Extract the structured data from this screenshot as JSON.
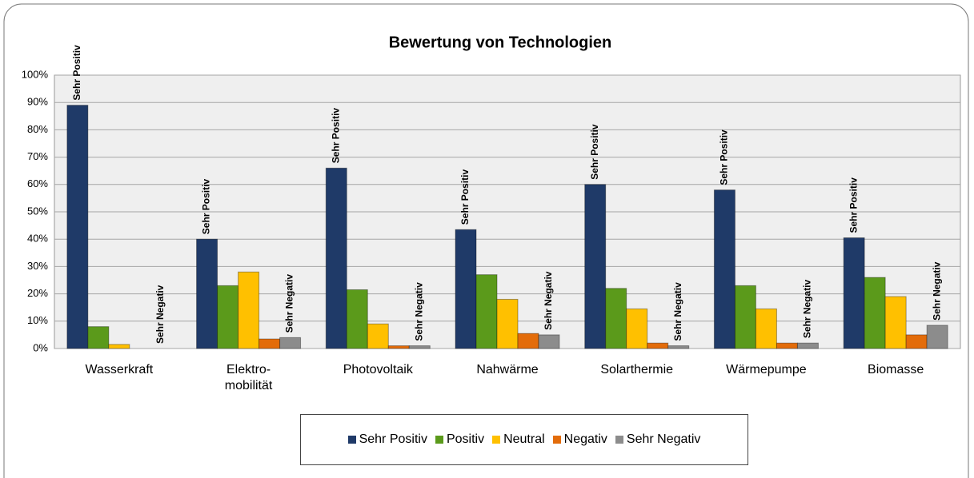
{
  "chart_data": {
    "type": "bar",
    "title": "Bewertung von Technologien",
    "categories": [
      "Wasserkraft",
      "Elektro-\nmobilität",
      "Photovoltaik",
      "Nahwärme",
      "Solarthermie",
      "Wärmepumpe",
      "Biomasse"
    ],
    "series": [
      {
        "name": "Sehr Positiv",
        "color": "#1f3a68",
        "values": [
          89,
          40,
          66,
          43.5,
          60,
          58,
          40.5
        ]
      },
      {
        "name": "Positiv",
        "color": "#5b9a1b",
        "values": [
          8,
          23,
          21.5,
          27,
          22,
          23,
          26
        ]
      },
      {
        "name": "Neutral",
        "color": "#ffc000",
        "values": [
          1.5,
          28,
          9,
          18,
          14.5,
          14.5,
          19
        ]
      },
      {
        "name": "Negativ",
        "color": "#e36c0a",
        "values": [
          0,
          3.5,
          1,
          5.5,
          2,
          2,
          5
        ]
      },
      {
        "name": "Sehr Negativ",
        "color": "#8c8c8c",
        "values": [
          0,
          4,
          1,
          5,
          1,
          2,
          8.5
        ]
      }
    ],
    "ylim": [
      0,
      100
    ],
    "yticks": [
      {
        "value": 0,
        "label": "0%"
      },
      {
        "value": 10,
        "label": "10%"
      },
      {
        "value": 20,
        "label": "20%"
      },
      {
        "value": 30,
        "label": "30%"
      },
      {
        "value": 40,
        "label": "40%"
      },
      {
        "value": 50,
        "label": "50%"
      },
      {
        "value": 60,
        "label": "60%"
      },
      {
        "value": 70,
        "label": "70%"
      },
      {
        "value": 80,
        "label": "80%"
      },
      {
        "value": 90,
        "label": "90%"
      },
      {
        "value": 100,
        "label": "100%"
      }
    ],
    "grid": true,
    "legend": "bottom"
  }
}
